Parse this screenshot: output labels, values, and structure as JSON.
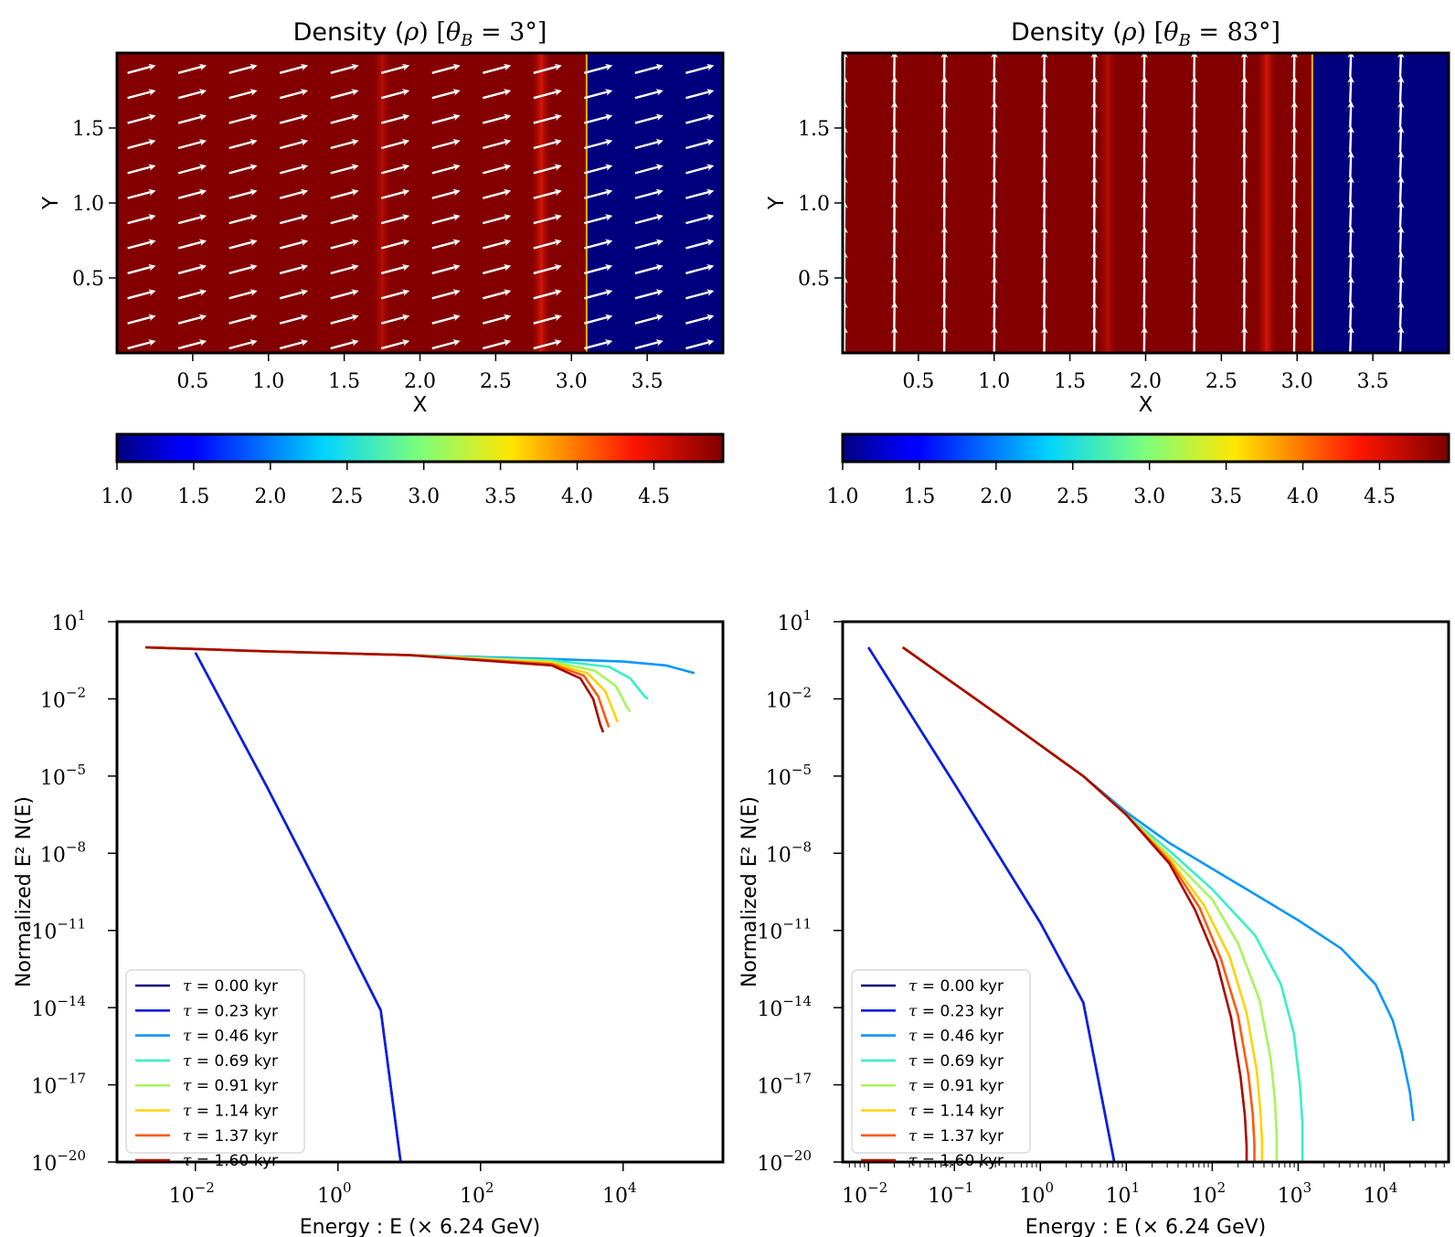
{
  "chart_data": [
    {
      "type": "heatmap",
      "title": "Density (ρ) [θ_B = 3°]",
      "title_parts": {
        "prefix": "Density (",
        "rho": "ρ",
        "mid": ") [",
        "theta": "θ",
        "sub": "B",
        "eq": " = 3°]"
      },
      "xlabel": "X",
      "ylabel": "Y",
      "xlim": [
        0,
        4.0
      ],
      "ylim": [
        0,
        2.0
      ],
      "xticks": [
        "0.5",
        "1.0",
        "1.5",
        "2.0",
        "2.5",
        "3.0",
        "3.5"
      ],
      "yticks": [
        "0.5",
        "1.0",
        "1.5"
      ],
      "shock_x": 3.1,
      "density_high": 4.9,
      "density_low": 1.0,
      "bands_x": [
        1.75,
        2.8
      ],
      "field_angle_deg": 3,
      "colorbar": {
        "min": 1.0,
        "max": 4.95,
        "ticks": [
          "1.0",
          "1.5",
          "2.0",
          "2.5",
          "3.0",
          "3.5",
          "4.0",
          "4.5"
        ]
      }
    },
    {
      "type": "heatmap",
      "title": "Density (ρ) [θ_B = 83°]",
      "title_parts": {
        "prefix": "Density (",
        "rho": "ρ",
        "mid": ") [",
        "theta": "θ",
        "sub": "B",
        "eq": " = 83°]"
      },
      "xlabel": "X",
      "ylabel": "Y",
      "xlim": [
        0,
        4.0
      ],
      "ylim": [
        0,
        2.0
      ],
      "xticks": [
        "0.5",
        "1.0",
        "1.5",
        "2.0",
        "2.5",
        "3.0",
        "3.5"
      ],
      "yticks": [
        "0.5",
        "1.0",
        "1.5"
      ],
      "shock_x": 3.1,
      "density_high": 4.9,
      "density_low": 1.0,
      "bands_x": [
        1.75,
        2.8
      ],
      "field_angle_deg": 83,
      "colorbar": {
        "min": 1.0,
        "max": 4.95,
        "ticks": [
          "1.0",
          "1.5",
          "2.0",
          "2.5",
          "3.0",
          "3.5",
          "4.0",
          "4.5"
        ]
      }
    },
    {
      "type": "line",
      "xscale": "log",
      "yscale": "log",
      "xlabel": "Energy :  E (× 6.24 GeV)",
      "ylabel": "Normalized E² N(E)",
      "xlim_log10": [
        -3.1,
        5.4
      ],
      "ylim_log10": [
        -20,
        1
      ],
      "xticks_log10": [
        -2,
        0,
        2,
        4
      ],
      "yticks_log10": [
        1,
        -2,
        -5,
        -8,
        -11,
        -14,
        -17,
        -20
      ],
      "minor_x_ticks": false,
      "legend": "lower-left",
      "series": [
        {
          "name": "τ = 0.00 kyr",
          "color": "#00007f",
          "log10_E": [
            -2.0,
            -1.0,
            0.0,
            0.6,
            0.88
          ],
          "log10_y": [
            -0.2,
            -5.4,
            -10.8,
            -14.1,
            -20.0
          ]
        },
        {
          "name": "τ = 0.23 kyr",
          "color": "#0a1ee6",
          "log10_E": [
            -2.0,
            -1.0,
            0.0,
            0.6,
            0.88
          ],
          "log10_y": [
            -0.2,
            -5.4,
            -10.8,
            -14.1,
            -20.0
          ]
        },
        {
          "name": "τ = 0.46 kyr",
          "color": "#0a96ff",
          "log10_E": [
            -2.7,
            -1.0,
            1.0,
            3.0,
            4.0,
            4.6,
            5.0
          ],
          "log10_y": [
            0.0,
            -0.15,
            -0.3,
            -0.45,
            -0.55,
            -0.7,
            -1.0
          ]
        },
        {
          "name": "τ = 0.69 kyr",
          "color": "#38f0c8",
          "log10_E": [
            -2.7,
            -1.0,
            1.0,
            3.0,
            3.8,
            4.1,
            4.3,
            4.35
          ],
          "log10_y": [
            0.0,
            -0.15,
            -0.3,
            -0.5,
            -0.75,
            -1.2,
            -1.9,
            -2.0
          ]
        },
        {
          "name": "τ = 0.91 kyr",
          "color": "#a8f55a",
          "log10_E": [
            -2.7,
            -1.0,
            1.0,
            3.0,
            3.6,
            3.9,
            4.05,
            4.1
          ],
          "log10_y": [
            0.0,
            -0.15,
            -0.3,
            -0.55,
            -0.9,
            -1.5,
            -2.3,
            -2.5
          ]
        },
        {
          "name": "τ = 1.14 kyr",
          "color": "#ffd200",
          "log10_E": [
            -2.7,
            -1.0,
            1.0,
            3.0,
            3.5,
            3.75,
            3.88,
            3.92
          ],
          "log10_y": [
            0.0,
            -0.15,
            -0.3,
            -0.6,
            -1.0,
            -1.7,
            -2.6,
            -2.9
          ]
        },
        {
          "name": "τ = 1.37 kyr",
          "color": "#ff5a0a",
          "log10_E": [
            -2.7,
            -1.0,
            1.0,
            3.0,
            3.45,
            3.65,
            3.76,
            3.8
          ],
          "log10_y": [
            0.0,
            -0.15,
            -0.3,
            -0.65,
            -1.1,
            -1.9,
            -2.8,
            -3.1
          ]
        },
        {
          "name": "τ = 1.60 kyr",
          "color": "#aa0a00",
          "log10_E": [
            -2.7,
            -1.0,
            1.0,
            3.0,
            3.4,
            3.58,
            3.68,
            3.72
          ],
          "log10_y": [
            0.0,
            -0.15,
            -0.3,
            -0.7,
            -1.2,
            -2.0,
            -3.0,
            -3.3
          ]
        }
      ]
    },
    {
      "type": "line",
      "xscale": "log",
      "yscale": "log",
      "xlabel": "Energy :  E (× 6.24 GeV)",
      "ylabel": "Normalized E² N(E)",
      "xlim_log10": [
        -2.3,
        4.75
      ],
      "ylim_log10": [
        -20,
        1
      ],
      "xticks_log10": [
        -2,
        -1,
        0,
        1,
        2,
        3,
        4
      ],
      "yticks_log10": [
        1,
        -2,
        -5,
        -8,
        -11,
        -14,
        -17,
        -20
      ],
      "minor_x_ticks": true,
      "legend": "lower-left",
      "series": [
        {
          "name": "τ = 0.00 kyr",
          "color": "#00007f",
          "log10_E": [
            -2.0,
            -1.0,
            0.0,
            0.5,
            0.86
          ],
          "log10_y": [
            0.0,
            -5.3,
            -10.7,
            -13.8,
            -20.0
          ]
        },
        {
          "name": "τ = 0.23 kyr",
          "color": "#0a1ee6",
          "log10_E": [
            -2.0,
            -1.0,
            0.0,
            0.5,
            0.86
          ],
          "log10_y": [
            0.0,
            -5.3,
            -10.7,
            -13.8,
            -20.0
          ]
        },
        {
          "name": "τ = 0.46 kyr",
          "color": "#0a96ff",
          "log10_E": [
            -1.6,
            -0.5,
            0.5,
            1.0,
            1.5,
            2.0,
            2.5,
            3.0,
            3.5,
            3.9,
            4.1,
            4.2,
            4.3,
            4.34
          ],
          "log10_y": [
            0.0,
            -2.6,
            -5.0,
            -6.4,
            -7.6,
            -8.6,
            -9.6,
            -10.6,
            -11.7,
            -13.1,
            -14.5,
            -15.7,
            -17.3,
            -18.4
          ]
        },
        {
          "name": "τ = 0.69 kyr",
          "color": "#38f0c8",
          "log10_E": [
            -1.6,
            -0.5,
            0.5,
            1.0,
            1.5,
            2.0,
            2.5,
            2.8,
            2.95,
            3.02,
            3.05,
            3.05
          ],
          "log10_y": [
            0.0,
            -2.6,
            -5.0,
            -6.5,
            -7.9,
            -9.4,
            -11.2,
            -13.1,
            -15.0,
            -17.0,
            -18.5,
            -20.0
          ]
        },
        {
          "name": "τ = 0.91 kyr",
          "color": "#a8f55a",
          "log10_E": [
            -1.6,
            -0.5,
            0.5,
            1.0,
            1.5,
            2.0,
            2.3,
            2.55,
            2.68,
            2.73,
            2.75,
            2.75
          ],
          "log10_y": [
            0.0,
            -2.6,
            -5.0,
            -6.5,
            -8.1,
            -9.8,
            -11.5,
            -13.7,
            -16.0,
            -17.6,
            -19.0,
            -20.0
          ]
        },
        {
          "name": "τ = 1.14 kyr",
          "color": "#ffd200",
          "log10_E": [
            -1.6,
            -0.5,
            0.5,
            1.0,
            1.5,
            1.9,
            2.2,
            2.4,
            2.52,
            2.56,
            2.58,
            2.58
          ],
          "log10_y": [
            0.0,
            -2.6,
            -5.0,
            -6.5,
            -8.2,
            -10.0,
            -12.0,
            -14.2,
            -16.5,
            -18.0,
            -19.2,
            -20.0
          ]
        },
        {
          "name": "τ = 1.37 kyr",
          "color": "#ff5a0a",
          "log10_E": [
            -1.6,
            -0.5,
            0.5,
            1.0,
            1.5,
            1.85,
            2.1,
            2.3,
            2.42,
            2.47,
            2.49,
            2.49
          ],
          "log10_y": [
            0.0,
            -2.6,
            -5.0,
            -6.5,
            -8.3,
            -10.1,
            -12.1,
            -14.3,
            -16.6,
            -18.1,
            -19.3,
            -20.0
          ]
        },
        {
          "name": "τ = 1.60 kyr",
          "color": "#aa0a00",
          "log10_E": [
            -1.6,
            -0.5,
            0.5,
            1.0,
            1.5,
            1.8,
            2.05,
            2.22,
            2.33,
            2.38,
            2.4,
            2.4
          ],
          "log10_y": [
            0.0,
            -2.6,
            -5.0,
            -6.5,
            -8.4,
            -10.2,
            -12.2,
            -14.4,
            -16.7,
            -18.2,
            -19.4,
            -20.0
          ]
        }
      ]
    }
  ]
}
